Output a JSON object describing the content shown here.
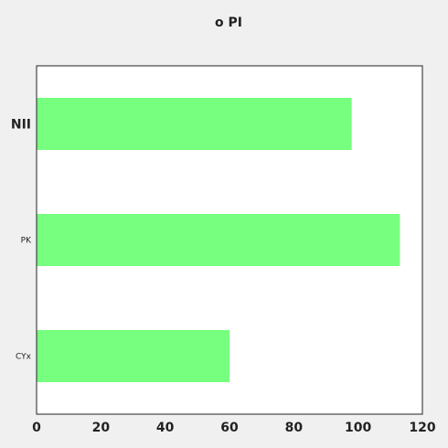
{
  "chart_data": {
    "type": "bar",
    "orientation": "horizontal",
    "title": "o PI",
    "categories": [
      "NII",
      "PK",
      "CYx"
    ],
    "values": [
      98,
      113,
      60
    ],
    "xlim": [
      0,
      120
    ],
    "xticks": [
      0,
      20,
      40,
      60,
      80,
      100,
      120
    ],
    "xlabel": "",
    "ylabel": "",
    "grid": false,
    "bar_color": "#77ff80",
    "background": "#f0f0f0",
    "plot_background": "#ffffff"
  }
}
